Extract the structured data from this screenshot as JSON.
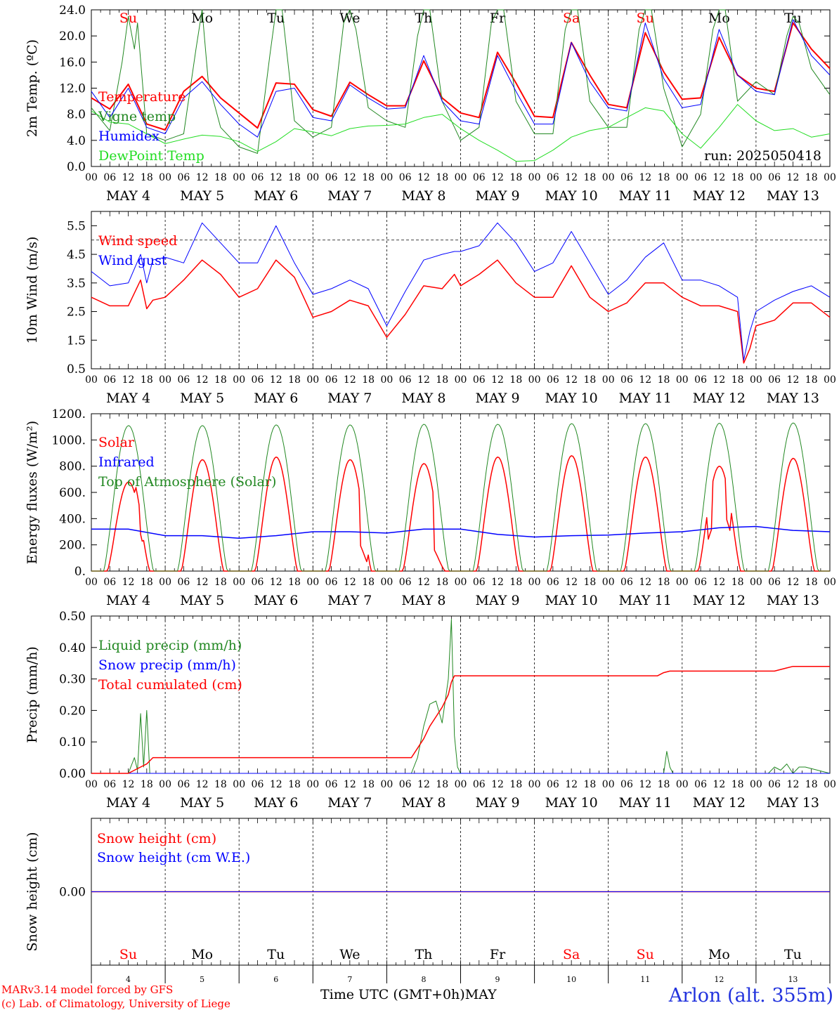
{
  "chart_data": [
    {
      "type": "line",
      "ylabel": "2m Temp. (ºC)",
      "ylim": [
        0,
        24
      ],
      "yticks": [
        "0.0",
        "4.0",
        "8.0",
        "12.0",
        "16.0",
        "20.0",
        "24.0"
      ],
      "grid": "vertical dashed at 00 UTC",
      "legend": "top-left",
      "annotation": "run: 2025050418",
      "day_labels": [
        {
          "text": "Su",
          "color": "#ff0000"
        },
        {
          "text": "Mo",
          "color": "#000000"
        },
        {
          "text": "Tu",
          "color": "#000000"
        },
        {
          "text": "We",
          "color": "#000000"
        },
        {
          "text": "Th",
          "color": "#000000"
        },
        {
          "text": "Fr",
          "color": "#000000"
        },
        {
          "text": "Sa",
          "color": "#ff0000"
        },
        {
          "text": "Su",
          "color": "#ff0000"
        },
        {
          "text": "Mo",
          "color": "#000000"
        },
        {
          "text": "Tu",
          "color": "#000000"
        }
      ],
      "x_units": "hours since MAY 4 00 UTC",
      "series": [
        {
          "name": "Temperature",
          "color": "#ff0000",
          "width": 2,
          "x": [
            0,
            6,
            12,
            18,
            24,
            30,
            36,
            42,
            48,
            54,
            60,
            66,
            72,
            78,
            84,
            90,
            96,
            102,
            108,
            114,
            120,
            126,
            132,
            138,
            144,
            150,
            156,
            162,
            168,
            174,
            180,
            186,
            192,
            198,
            204,
            210,
            216,
            222,
            228,
            234,
            240
          ],
          "y": [
            10.5,
            8.8,
            12.6,
            6.5,
            5.6,
            11.5,
            13.8,
            10.5,
            8.2,
            5.9,
            12.8,
            12.6,
            8.7,
            7.7,
            12.9,
            11.0,
            9.3,
            9.3,
            16.2,
            10.5,
            8.2,
            7.5,
            17.5,
            12.8,
            7.7,
            7.5,
            19.0,
            14.0,
            9.5,
            9.0,
            20.5,
            14.5,
            10.3,
            10.5,
            19.8,
            14.0,
            12.0,
            11.5,
            22.0,
            18.0,
            15.0
          ]
        },
        {
          "name": "Vigne temp",
          "color": "#228822",
          "width": 1,
          "x": [
            0,
            6,
            10,
            12,
            14,
            15,
            18,
            24,
            30,
            34,
            36,
            38,
            42,
            48,
            54,
            58,
            60,
            62,
            66,
            72,
            78,
            82,
            84,
            86,
            90,
            96,
            102,
            106,
            108,
            110,
            114,
            120,
            126,
            130,
            132,
            134,
            138,
            144,
            150,
            154,
            156,
            158,
            162,
            168,
            174,
            178,
            180,
            182,
            186,
            192,
            198,
            202,
            204,
            206,
            210,
            216,
            222,
            226,
            228,
            230,
            234,
            240
          ],
          "y": [
            9.0,
            5.5,
            16.0,
            23.0,
            18.0,
            22.0,
            5.0,
            4.0,
            5.0,
            18.0,
            24.0,
            13.0,
            6.0,
            3.0,
            2.0,
            17.0,
            24.0,
            24.0,
            7.0,
            4.5,
            6.0,
            22.0,
            24.0,
            21.0,
            9.0,
            7.0,
            6.0,
            20.0,
            24.0,
            24.0,
            10.0,
            4.0,
            6.0,
            22.0,
            24.0,
            24.0,
            10.0,
            5.0,
            5.0,
            21.0,
            24.0,
            24.0,
            10.0,
            6.0,
            6.0,
            21.0,
            24.0,
            24.0,
            12.0,
            3.0,
            8.0,
            21.0,
            24.0,
            24.0,
            10.0,
            13.0,
            11.0,
            20.0,
            23.0,
            22.0,
            15.0,
            11.0
          ]
        },
        {
          "name": "Humidex",
          "color": "#0000ff",
          "width": 1,
          "x": [
            0,
            6,
            12,
            18,
            24,
            30,
            36,
            42,
            48,
            54,
            60,
            66,
            72,
            78,
            84,
            90,
            96,
            102,
            108,
            114,
            120,
            126,
            132,
            138,
            144,
            150,
            156,
            162,
            168,
            174,
            180,
            186,
            192,
            198,
            204,
            210,
            216,
            222,
            228,
            234,
            240
          ],
          "y": [
            11.5,
            7.5,
            12.0,
            6.0,
            5.0,
            10.5,
            13.0,
            9.5,
            6.5,
            4.5,
            11.5,
            12.0,
            7.5,
            7.0,
            12.5,
            10.5,
            8.8,
            9.0,
            17.0,
            10.0,
            7.0,
            6.5,
            17.0,
            11.5,
            6.5,
            6.5,
            19.0,
            13.0,
            9.0,
            8.5,
            22.0,
            13.5,
            9.0,
            9.5,
            21.0,
            14.0,
            11.5,
            11.0,
            22.5,
            17.0,
            14.0
          ]
        },
        {
          "name": "DewPoint Temp",
          "color": "#22dd22",
          "width": 1,
          "x": [
            0,
            6,
            12,
            18,
            24,
            30,
            36,
            42,
            48,
            54,
            60,
            66,
            72,
            78,
            84,
            90,
            96,
            102,
            108,
            114,
            120,
            126,
            132,
            138,
            144,
            150,
            156,
            162,
            168,
            174,
            180,
            186,
            192,
            198,
            204,
            210,
            216,
            222,
            228,
            234,
            240
          ],
          "y": [
            8.5,
            6.8,
            6.5,
            5.0,
            3.5,
            4.2,
            4.8,
            4.6,
            3.8,
            2.3,
            3.8,
            5.8,
            5.3,
            4.7,
            5.8,
            6.2,
            6.3,
            6.5,
            7.5,
            8.0,
            5.8,
            4.0,
            2.5,
            0.8,
            0.9,
            2.5,
            4.5,
            5.5,
            6.0,
            7.5,
            9.0,
            8.5,
            5.0,
            2.8,
            6.0,
            9.5,
            7.0,
            5.5,
            5.8,
            4.5,
            5.0
          ]
        }
      ]
    },
    {
      "type": "line",
      "ylabel": "10m Wind (m/s)",
      "ylim": [
        0.5,
        6.0
      ],
      "yticks": [
        "0.5",
        "1.5",
        "2.5",
        "3.5",
        "4.5",
        "5.5"
      ],
      "reference_line": 5.0,
      "legend": "top-left",
      "x_units": "hours since MAY 4 00 UTC",
      "series": [
        {
          "name": "Wind speed",
          "color": "#ff0000",
          "width": 1.5,
          "x": [
            0,
            6,
            12,
            16,
            18,
            20,
            24,
            30,
            36,
            42,
            48,
            54,
            60,
            66,
            72,
            78,
            84,
            90,
            96,
            102,
            108,
            114,
            118,
            120,
            126,
            132,
            138,
            144,
            150,
            156,
            162,
            168,
            174,
            180,
            186,
            192,
            198,
            204,
            210,
            212,
            214,
            216,
            222,
            228,
            234,
            240
          ],
          "y": [
            3.0,
            2.7,
            2.7,
            3.6,
            2.6,
            2.9,
            3.0,
            3.6,
            4.3,
            3.8,
            3.0,
            3.3,
            4.3,
            3.7,
            2.3,
            2.5,
            2.9,
            2.7,
            1.6,
            2.4,
            3.4,
            3.3,
            3.8,
            3.4,
            3.8,
            4.3,
            3.5,
            3.0,
            3.0,
            4.1,
            3.0,
            2.5,
            2.8,
            3.5,
            3.5,
            3.0,
            2.7,
            2.7,
            2.5,
            0.7,
            1.2,
            2.0,
            2.2,
            2.8,
            2.8,
            2.3
          ]
        },
        {
          "name": "Wind gust",
          "color": "#0000ff",
          "width": 1,
          "x": [
            0,
            6,
            12,
            16,
            18,
            20,
            24,
            30,
            36,
            42,
            48,
            54,
            60,
            66,
            72,
            78,
            84,
            90,
            96,
            102,
            108,
            114,
            118,
            120,
            126,
            132,
            138,
            144,
            150,
            156,
            162,
            168,
            174,
            180,
            186,
            192,
            198,
            204,
            210,
            212,
            214,
            216,
            222,
            228,
            234,
            240
          ],
          "y": [
            3.9,
            3.4,
            3.5,
            4.5,
            3.5,
            4.3,
            4.4,
            4.2,
            5.6,
            4.9,
            4.2,
            4.2,
            5.5,
            4.2,
            3.1,
            3.3,
            3.6,
            3.3,
            2.0,
            3.2,
            4.3,
            4.5,
            4.6,
            4.6,
            4.8,
            5.6,
            4.9,
            3.9,
            4.2,
            5.3,
            4.2,
            3.1,
            3.6,
            4.4,
            4.9,
            3.6,
            3.6,
            3.4,
            3.0,
            0.8,
            1.8,
            2.5,
            2.9,
            3.2,
            3.4,
            3.0
          ]
        }
      ]
    },
    {
      "type": "line",
      "ylabel": "Energy fluxes (W/m²)",
      "ylim": [
        0,
        1200
      ],
      "yticks": [
        "0.",
        "200.",
        "400.",
        "600.",
        "800.",
        "1000.",
        "1200."
      ],
      "legend": "top-left",
      "x_units": "hours since MAY 4 00 UTC",
      "series": [
        {
          "name": "Solar",
          "color": "#ff0000",
          "width": 1.5,
          "diurnal_peaks": [
            680,
            850,
            870,
            850,
            820,
            870,
            880,
            870,
            800,
            860
          ]
        },
        {
          "name": "Infrared",
          "color": "#0000ff",
          "width": 1.5,
          "x": [
            0,
            12,
            24,
            36,
            48,
            60,
            72,
            84,
            96,
            108,
            120,
            132,
            144,
            156,
            168,
            180,
            192,
            204,
            216,
            228,
            240
          ],
          "y": [
            320,
            320,
            270,
            270,
            250,
            270,
            300,
            300,
            290,
            320,
            320,
            280,
            260,
            270,
            275,
            290,
            300,
            330,
            340,
            310,
            300
          ]
        },
        {
          "name": "Top of Atmosphere (Solar)",
          "color": "#228822",
          "width": 1,
          "diurnal_peaks": [
            1110,
            1110,
            1115,
            1115,
            1120,
            1120,
            1125,
            1125,
            1128,
            1130
          ]
        }
      ]
    },
    {
      "type": "line",
      "ylabel": "Precip (mm/h)",
      "ylim": [
        0,
        0.5
      ],
      "yticks": [
        "0.00",
        "0.10",
        "0.20",
        "0.30",
        "0.40",
        "0.50"
      ],
      "legend": "top-left",
      "x_units": "hours since MAY 4 00 UTC",
      "series": [
        {
          "name": "Liquid precip (mm/h)",
          "color": "#228822",
          "width": 1,
          "x": [
            0,
            12,
            14,
            15,
            16,
            17,
            18,
            19,
            20,
            22,
            24,
            96,
            104,
            106,
            108,
            110,
            112,
            114,
            116,
            117,
            118,
            119,
            120,
            140,
            186,
            187,
            188,
            189,
            190,
            220,
            222,
            224,
            226,
            228,
            230,
            232,
            240
          ],
          "y": [
            0,
            0,
            0.05,
            0.01,
            0.19,
            0.02,
            0.2,
            0.0,
            0.0,
            0.0,
            0,
            0,
            0,
            0.05,
            0.15,
            0.22,
            0.23,
            0.16,
            0.3,
            0.49,
            0.12,
            0.02,
            0,
            0,
            0,
            0.07,
            0.02,
            0.0,
            0,
            0,
            0.02,
            0.01,
            0.03,
            0.0,
            0.02,
            0.02,
            0
          ]
        },
        {
          "name": "Snow precip (mm/h)",
          "color": "#0000ff",
          "width": 1,
          "x": [
            0,
            240
          ],
          "y": [
            0,
            0
          ]
        },
        {
          "name": "Total cumulated (cm)",
          "color": "#ff0000",
          "width": 1.5,
          "x": [
            0,
            12,
            14,
            16,
            18,
            20,
            24,
            96,
            104,
            106,
            108,
            110,
            112,
            114,
            116,
            117,
            118,
            120,
            184,
            186,
            188,
            222,
            226,
            228,
            240
          ],
          "y": [
            0,
            0,
            0.01,
            0.02,
            0.03,
            0.05,
            0.05,
            0.05,
            0.05,
            0.08,
            0.11,
            0.15,
            0.18,
            0.21,
            0.25,
            0.29,
            0.31,
            0.31,
            0.31,
            0.32,
            0.325,
            0.325,
            0.335,
            0.34,
            0.34
          ]
        }
      ]
    },
    {
      "type": "line",
      "ylabel": "Snow height (cm)",
      "ylim": [
        -1,
        1
      ],
      "yticks": [
        "0.00"
      ],
      "legend": "top-left",
      "day_labels": [
        {
          "text": "Su",
          "color": "#ff0000"
        },
        {
          "text": "Mo",
          "color": "#000000"
        },
        {
          "text": "Tu",
          "color": "#000000"
        },
        {
          "text": "We",
          "color": "#000000"
        },
        {
          "text": "Th",
          "color": "#000000"
        },
        {
          "text": "Fr",
          "color": "#000000"
        },
        {
          "text": "Sa",
          "color": "#ff0000"
        },
        {
          "text": "Su",
          "color": "#ff0000"
        },
        {
          "text": "Mo",
          "color": "#000000"
        },
        {
          "text": "Tu",
          "color": "#000000"
        }
      ],
      "bottom_day_numbers": [
        "4",
        "5",
        "6",
        "7",
        "8",
        "9",
        "10",
        "11",
        "12",
        "13"
      ],
      "series": [
        {
          "name": "Snow height (cm)",
          "color": "#ff0000",
          "width": 1.5,
          "x": [
            0,
            240
          ],
          "y": [
            0,
            0
          ]
        },
        {
          "name": "Snow height (cm W.E.)",
          "color": "#0000ff",
          "width": 1,
          "x": [
            0,
            240
          ],
          "y": [
            0,
            0
          ]
        }
      ]
    }
  ],
  "x_axis": {
    "hour_ticks": [
      "00",
      "06",
      "12",
      "18"
    ],
    "last_tick": "00",
    "date_labels": [
      "MAY  4",
      "MAY  5",
      "MAY  6",
      "MAY  7",
      "MAY  8",
      "MAY  9",
      "MAY 10",
      "MAY 11",
      "MAY 12",
      "MAY 13"
    ]
  },
  "footer": {
    "credit_line1": "MARv3.14 model forced by GFS",
    "credit_line2": "(c) Lab. of Climatology, University of Liege",
    "xlabel": "Time UTC (GMT+0h)MAY",
    "station": "Arlon (alt. 355m)"
  }
}
